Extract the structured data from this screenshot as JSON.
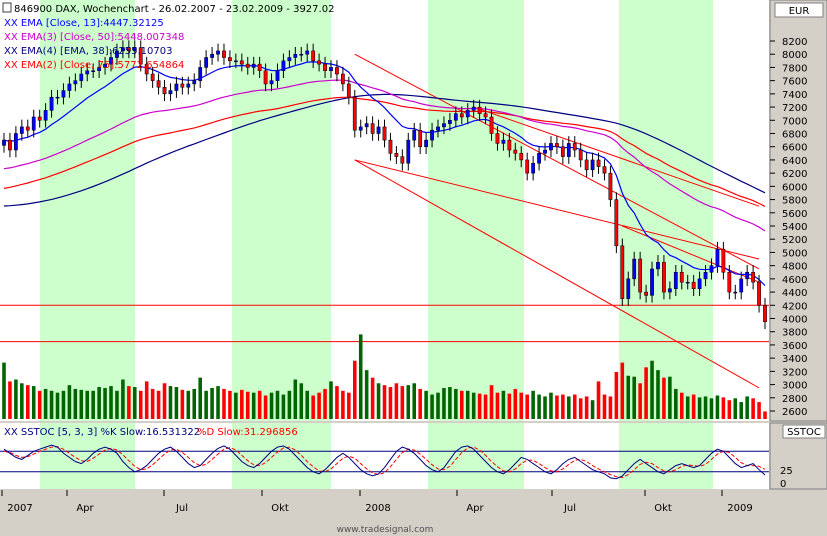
{
  "header": {
    "symbol": "846900",
    "title": "846900  DAX, Wochenchart - 26.02.2007 - 23.02.2009 - 3927.02",
    "legend": [
      {
        "text": "XX EMA [Close, 13]:4447.32125",
        "color": "#0000ff"
      },
      {
        "text": "XX EMA(3) [Close, 50]:5448.007348",
        "color": "#cc00cc"
      },
      {
        "text": "XX EMA(4) [EMA, 38]:6255.10703",
        "color": "#000080"
      },
      {
        "text": "XX EMA(2) [Close, 75]:5772.654864",
        "color": "#ff0000"
      }
    ]
  },
  "currency_label": "EUR",
  "stoch_panel": {
    "title": "XX SSTOC [5, 3, 3]  %K Slow:16.531322  %D Slow:31.296856",
    "k_label": "XX SSTOC [5, 3, 3]  %K Slow:16.531322",
    "d_label": "%D Slow:31.296856",
    "side_label": "SSTOC",
    "ticks": [
      "25",
      "0"
    ]
  },
  "watermark": "www.tradesignal.com",
  "x_labels": [
    "2007",
    "Apr",
    "Jul",
    "Okt",
    "2008",
    "Apr",
    "Jul",
    "Okt",
    "2009"
  ],
  "colors": {
    "up": "#006400",
    "down": "#ff0000",
    "band": "#ccffcc",
    "ema13": "#0000ff",
    "ema50": "#cc00cc",
    "ema38": "#000080",
    "ema75": "#ff0000"
  },
  "chart_data": {
    "type": "candlestick",
    "title": "846900  DAX, Wochenchart - 26.02.2007 - 23.02.2009 - 3927.02",
    "y_ticks": [
      2600,
      2800,
      3000,
      3200,
      3400,
      3600,
      3800,
      4000,
      4200,
      4400,
      4600,
      4800,
      5000,
      5200,
      5400,
      5600,
      5800,
      6000,
      6200,
      6400,
      6600,
      6800,
      7000,
      7200,
      7400,
      7600,
      7800,
      8000,
      8200
    ],
    "ylim": [
      2480,
      8550
    ],
    "x_labels": [
      "2007",
      "Apr",
      "Jul",
      "Okt",
      "2008",
      "Apr",
      "Jul",
      "Okt",
      "2009"
    ],
    "horizontal_lines": [
      4200,
      3650
    ],
    "closes": [
      6700,
      6550,
      6800,
      6900,
      6850,
      7050,
      7000,
      7150,
      7350,
      7350,
      7450,
      7550,
      7600,
      7700,
      7750,
      7750,
      7800,
      7850,
      7950,
      8050,
      8100,
      8050,
      8100,
      7850,
      7700,
      7600,
      7500,
      7400,
      7450,
      7550,
      7500,
      7550,
      7600,
      7800,
      7950,
      8000,
      8050,
      7950,
      7900,
      7900,
      7850,
      7800,
      7850,
      7750,
      7550,
      7600,
      7750,
      7900,
      7950,
      8000,
      8000,
      8050,
      7900,
      7850,
      7750,
      7800,
      7700,
      7550,
      7350,
      6850,
      6900,
      6950,
      6800,
      6900,
      6700,
      6500,
      6450,
      6350,
      6700,
      6850,
      6600,
      6700,
      6850,
      6900,
      6950,
      7000,
      7100,
      7050,
      7150,
      7200,
      7100,
      7050,
      6800,
      6650,
      6700,
      6550,
      6500,
      6400,
      6200,
      6350,
      6500,
      6550,
      6650,
      6600,
      6450,
      6650,
      6550,
      6400,
      6250,
      6400,
      6300,
      6200,
      5800,
      5100,
      4300,
      4600,
      4900,
      4400,
      4350,
      4750,
      4850,
      4400,
      4450,
      4700,
      4550,
      4550,
      4450,
      4600,
      4700,
      4800,
      5050,
      4700,
      4400,
      4400,
      4600,
      4700,
      4550,
      4200,
      3950
    ],
    "volumes": [
      60,
      40,
      42,
      38,
      36,
      35,
      30,
      32,
      30,
      28,
      30,
      36,
      32,
      31,
      30,
      30,
      34,
      33,
      35,
      30,
      42,
      35,
      34,
      30,
      40,
      32,
      30,
      38,
      35,
      34,
      31,
      30,
      32,
      44,
      30,
      33,
      35,
      32,
      30,
      28,
      31,
      29,
      28,
      30,
      25,
      28,
      30,
      26,
      30,
      42,
      38,
      30,
      25,
      28,
      32,
      40,
      35,
      30,
      28,
      62,
      90,
      52,
      44,
      38,
      36,
      34,
      38,
      35,
      36,
      38,
      32,
      30,
      26,
      28,
      33,
      34,
      32,
      30,
      30,
      28,
      27,
      26,
      36,
      28,
      30,
      27,
      32,
      28,
      26,
      30,
      26,
      24,
      28,
      25,
      26,
      24,
      26,
      22,
      24,
      20,
      40,
      26,
      24,
      50,
      60,
      46,
      45,
      38,
      55,
      62,
      52,
      44,
      45,
      32,
      28,
      24,
      26,
      23,
      24,
      22,
      25,
      23,
      20,
      22,
      18,
      24,
      22,
      18,
      8
    ],
    "stoch_k": [
      80,
      70,
      60,
      55,
      65,
      75,
      80,
      85,
      90,
      85,
      70,
      60,
      50,
      45,
      55,
      70,
      80,
      85,
      80,
      70,
      50,
      35,
      25,
      30,
      40,
      55,
      70,
      80,
      85,
      75,
      60,
      45,
      35,
      40,
      55,
      70,
      82,
      88,
      80,
      65,
      50,
      40,
      35,
      45,
      60,
      75,
      85,
      88,
      80,
      65,
      50,
      35,
      25,
      20,
      30,
      45,
      60,
      70,
      60,
      45,
      30,
      20,
      15,
      20,
      35,
      55,
      75,
      85,
      80,
      70,
      55,
      40,
      30,
      25,
      35,
      55,
      75,
      85,
      88,
      80,
      65,
      50,
      35,
      25,
      20,
      30,
      45,
      60,
      55,
      45,
      35,
      25,
      20,
      30,
      45,
      55,
      60,
      50,
      40,
      30,
      25,
      20,
      10,
      8,
      15,
      30,
      45,
      55,
      45,
      35,
      25,
      20,
      30,
      40,
      45,
      40,
      35,
      40,
      55,
      70,
      80,
      75,
      60,
      45,
      35,
      40,
      45,
      30,
      17
    ],
    "stoch_d": [
      75,
      72,
      65,
      60,
      62,
      68,
      75,
      80,
      85,
      86,
      80,
      70,
      60,
      52,
      50,
      58,
      68,
      78,
      82,
      78,
      66,
      52,
      38,
      30,
      32,
      42,
      55,
      68,
      78,
      80,
      72,
      60,
      47,
      40,
      43,
      55,
      68,
      80,
      84,
      78,
      65,
      52,
      42,
      40,
      47,
      60,
      73,
      83,
      85,
      78,
      65,
      50,
      37,
      27,
      25,
      32,
      45,
      58,
      63,
      58,
      45,
      32,
      22,
      18,
      23,
      37,
      55,
      72,
      80,
      78,
      68,
      55,
      42,
      32,
      30,
      38,
      55,
      72,
      83,
      85,
      78,
      65,
      50,
      37,
      27,
      25,
      32,
      45,
      53,
      53,
      45,
      35,
      27,
      25,
      32,
      43,
      53,
      55,
      50,
      40,
      32,
      25,
      18,
      13,
      11,
      18,
      30,
      43,
      48,
      45,
      35,
      27,
      25,
      30,
      38,
      42,
      40,
      38,
      43,
      55,
      68,
      75,
      72,
      60,
      47,
      40,
      40,
      38,
      31
    ]
  }
}
